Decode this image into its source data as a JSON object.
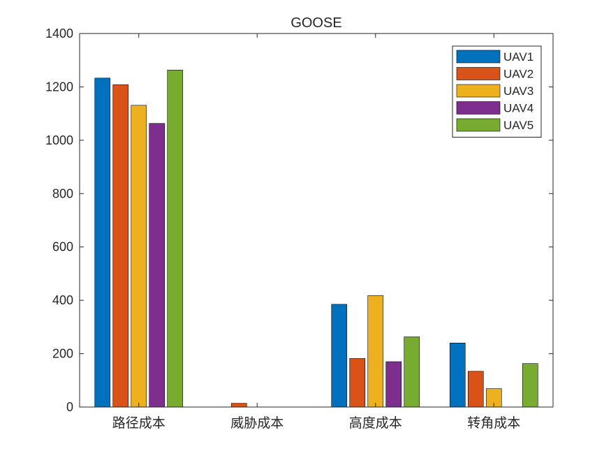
{
  "chart_data": {
    "type": "bar",
    "title": "GOOSE",
    "xlabel": "",
    "ylabel": "",
    "categories": [
      "路径成本",
      "威胁成本",
      "高度成本",
      "转角成本"
    ],
    "series": [
      {
        "name": "UAV1",
        "color": "#0072BD",
        "values": [
          1233,
          0,
          385,
          240
        ]
      },
      {
        "name": "UAV2",
        "color": "#D95319",
        "values": [
          1208,
          14,
          182,
          134
        ]
      },
      {
        "name": "UAV3",
        "color": "#EDB120",
        "values": [
          1131,
          0,
          418,
          69
        ]
      },
      {
        "name": "UAV4",
        "color": "#7E2F8E",
        "values": [
          1063,
          0,
          170,
          0
        ]
      },
      {
        "name": "UAV5",
        "color": "#77AC30",
        "values": [
          1263,
          0,
          263,
          163
        ]
      }
    ],
    "ylim": [
      0,
      1400
    ],
    "yticks": [
      0,
      200,
      400,
      600,
      800,
      1000,
      1200,
      1400
    ],
    "legend_position": "top-right",
    "grid": false
  }
}
